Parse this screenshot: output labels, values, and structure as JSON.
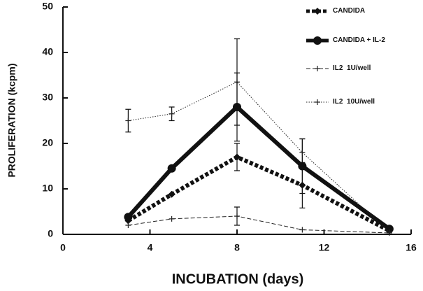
{
  "chart_data": {
    "type": "line",
    "xlabel": "INCUBATION  (days)",
    "ylabel": "PROLIFERATION  (kcpm)",
    "xlim": [
      0,
      16
    ],
    "xticks": [
      0,
      4,
      8,
      12,
      16
    ],
    "ylim": [
      0,
      50
    ],
    "yticks": [
      0,
      10,
      20,
      30,
      40,
      50
    ],
    "x": [
      3,
      5,
      8,
      11,
      15
    ],
    "series": [
      {
        "name": "CANDIDA",
        "color": "#111111",
        "width": 6,
        "dash": "5,3",
        "marker": "diamond",
        "values": [
          3,
          8.8,
          17,
          10.8,
          0.8
        ],
        "errors": [
          null,
          null,
          3,
          5,
          null
        ]
      },
      {
        "name": "CANDIDA + IL-2",
        "color": "#111111",
        "width": 6,
        "dash": "none",
        "marker": "circle",
        "values": [
          3.8,
          14.5,
          28,
          15,
          1.2
        ],
        "errors": [
          null,
          null,
          7.5,
          6,
          null
        ]
      },
      {
        "name": "IL2  1U/well",
        "color": "#222222",
        "width": 1,
        "dash": "6,3",
        "marker": "plus",
        "values": [
          2,
          3.4,
          4,
          1,
          0.3
        ],
        "errors": [
          null,
          null,
          2,
          null,
          null
        ]
      },
      {
        "name": "IL2  10U/well",
        "color": "#222222",
        "width": 1,
        "dash": "1.5,2",
        "marker": "plus",
        "values": [
          25,
          26.5,
          33.5,
          18,
          0.5
        ],
        "errors": [
          2.5,
          1.5,
          9.5,
          3,
          null
        ]
      }
    ]
  }
}
